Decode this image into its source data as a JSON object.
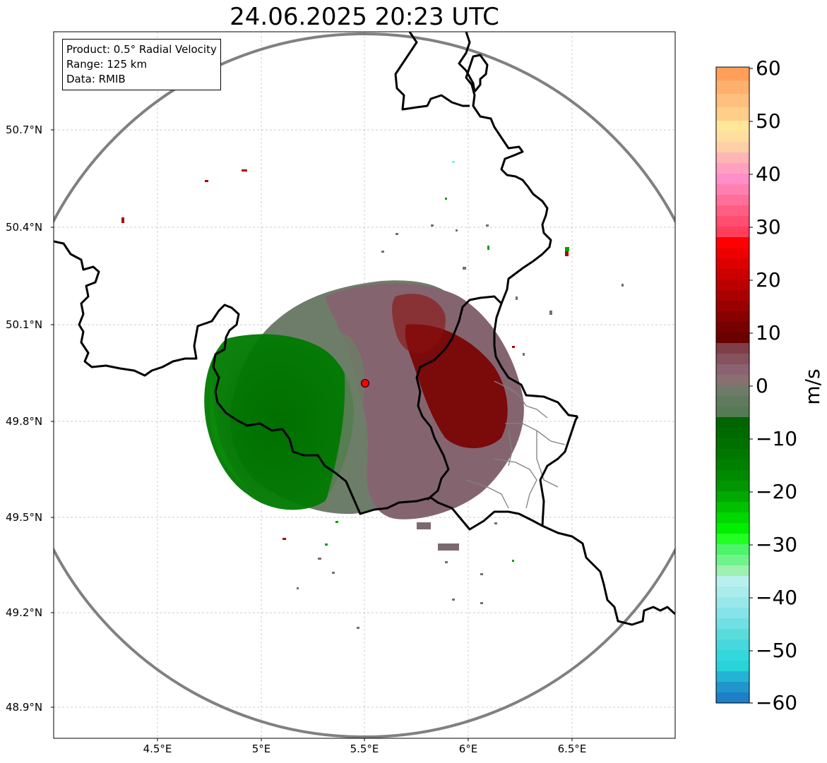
{
  "title": "24.06.2025 20:23 UTC",
  "info": {
    "product": "Product: 0.5° Radial Velocity",
    "range": "Range: 125 km",
    "data": "Data: RMIB"
  },
  "lat_labels": [
    "50.7°N",
    "50.4°N",
    "50.1°N",
    "49.8°N",
    "49.5°N",
    "49.2°N",
    "48.9°N"
  ],
  "lon_labels": [
    "4.5°E",
    "5°E",
    "5.5°E",
    "6°E",
    "6.5°E"
  ],
  "colorbar": {
    "unit": "m/s",
    "ticks": [
      "60",
      "50",
      "40",
      "30",
      "20",
      "10",
      "0",
      "−10",
      "−20",
      "−30",
      "−40",
      "−50",
      "−60"
    ],
    "range": [
      -60,
      60
    ]
  },
  "radar_site": {
    "lon": 5.505,
    "lat": 49.914,
    "color": "#ff0000"
  },
  "colors": {
    "approaching_strong": "#007000",
    "approaching_weak": "#5a7d5a",
    "near_zero": "#8a8080",
    "receding_weak": "#7a5060",
    "receding_strong": "#7a0000",
    "range_ring": "#808080",
    "border": "#000000"
  }
}
